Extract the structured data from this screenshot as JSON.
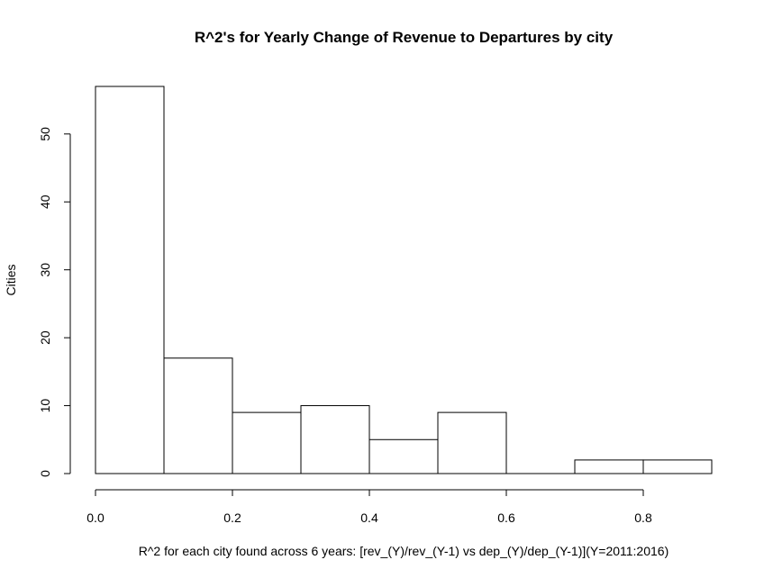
{
  "chart_data": {
    "type": "bar",
    "title": "R^2's for Yearly Change of Revenue to Departures by city",
    "xlabel": "R^2 for each city found across 6 years: [rev_(Y)/rev_(Y-1) vs dep_(Y)/dep_(Y-1)](Y=2011:2016)",
    "ylabel": "Cities",
    "bins": [
      {
        "start": 0.0,
        "end": 0.1,
        "count": 57
      },
      {
        "start": 0.1,
        "end": 0.2,
        "count": 17
      },
      {
        "start": 0.2,
        "end": 0.3,
        "count": 9
      },
      {
        "start": 0.3,
        "end": 0.4,
        "count": 10
      },
      {
        "start": 0.4,
        "end": 0.5,
        "count": 5
      },
      {
        "start": 0.5,
        "end": 0.6,
        "count": 9
      },
      {
        "start": 0.6,
        "end": 0.7,
        "count": 0
      },
      {
        "start": 0.7,
        "end": 0.8,
        "count": 2
      },
      {
        "start": 0.8,
        "end": 0.9,
        "count": 2
      }
    ],
    "xticks": [
      0.0,
      0.2,
      0.4,
      0.6,
      0.8
    ],
    "xtick_labels": [
      "0.0",
      "0.2",
      "0.4",
      "0.6",
      "0.8"
    ],
    "yticks": [
      0,
      10,
      20,
      30,
      40,
      50
    ],
    "ytick_labels": [
      "0",
      "10",
      "20",
      "30",
      "40",
      "50"
    ],
    "xlim": [
      0,
      0.9
    ],
    "ylim": [
      0,
      57
    ],
    "grid": false,
    "bar_fill": "#ffffff",
    "bar_stroke": "#000000"
  }
}
